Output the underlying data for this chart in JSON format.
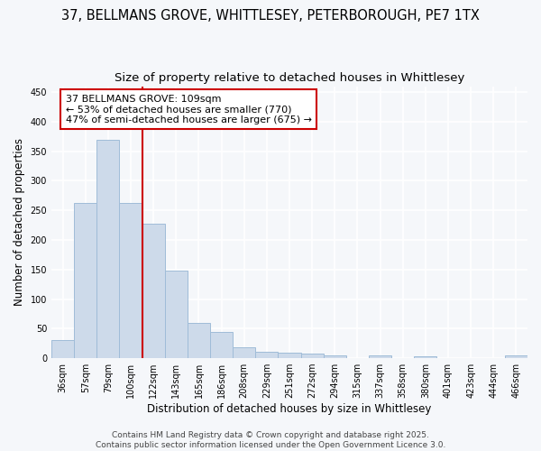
{
  "title_line1": "37, BELLMANS GROVE, WHITTLESEY, PETERBOROUGH, PE7 1TX",
  "title_line2": "Size of property relative to detached houses in Whittlesey",
  "xlabel": "Distribution of detached houses by size in Whittlesey",
  "ylabel": "Number of detached properties",
  "categories": [
    "36sqm",
    "57sqm",
    "79sqm",
    "100sqm",
    "122sqm",
    "143sqm",
    "165sqm",
    "186sqm",
    "208sqm",
    "229sqm",
    "251sqm",
    "272sqm",
    "294sqm",
    "315sqm",
    "337sqm",
    "358sqm",
    "380sqm",
    "401sqm",
    "423sqm",
    "444sqm",
    "466sqm"
  ],
  "values": [
    30,
    262,
    370,
    262,
    228,
    148,
    60,
    44,
    18,
    11,
    10,
    7,
    5,
    0,
    5,
    0,
    3,
    0,
    0,
    0,
    4
  ],
  "bar_color": "#cddaea",
  "bar_edge_color": "#a0bcd8",
  "ylim": [
    0,
    460
  ],
  "yticks": [
    0,
    50,
    100,
    150,
    200,
    250,
    300,
    350,
    400,
    450
  ],
  "vline_x_idx": 3.5,
  "vline_color": "#cc0000",
  "annotation_text": "37 BELLMANS GROVE: 109sqm\n← 53% of detached houses are smaller (770)\n47% of semi-detached houses are larger (675) →",
  "annotation_box_facecolor": "#ffffff",
  "annotation_box_edgecolor": "#cc0000",
  "footer_line1": "Contains HM Land Registry data © Crown copyright and database right 2025.",
  "footer_line2": "Contains public sector information licensed under the Open Government Licence 3.0.",
  "fig_facecolor": "#f5f7fa",
  "plot_facecolor": "#f5f7fa",
  "grid_color": "#ffffff",
  "title_fontsize": 10.5,
  "subtitle_fontsize": 9.5,
  "tick_fontsize": 7,
  "ylabel_fontsize": 8.5,
  "xlabel_fontsize": 8.5,
  "footer_fontsize": 6.5,
  "annotation_fontsize": 8
}
